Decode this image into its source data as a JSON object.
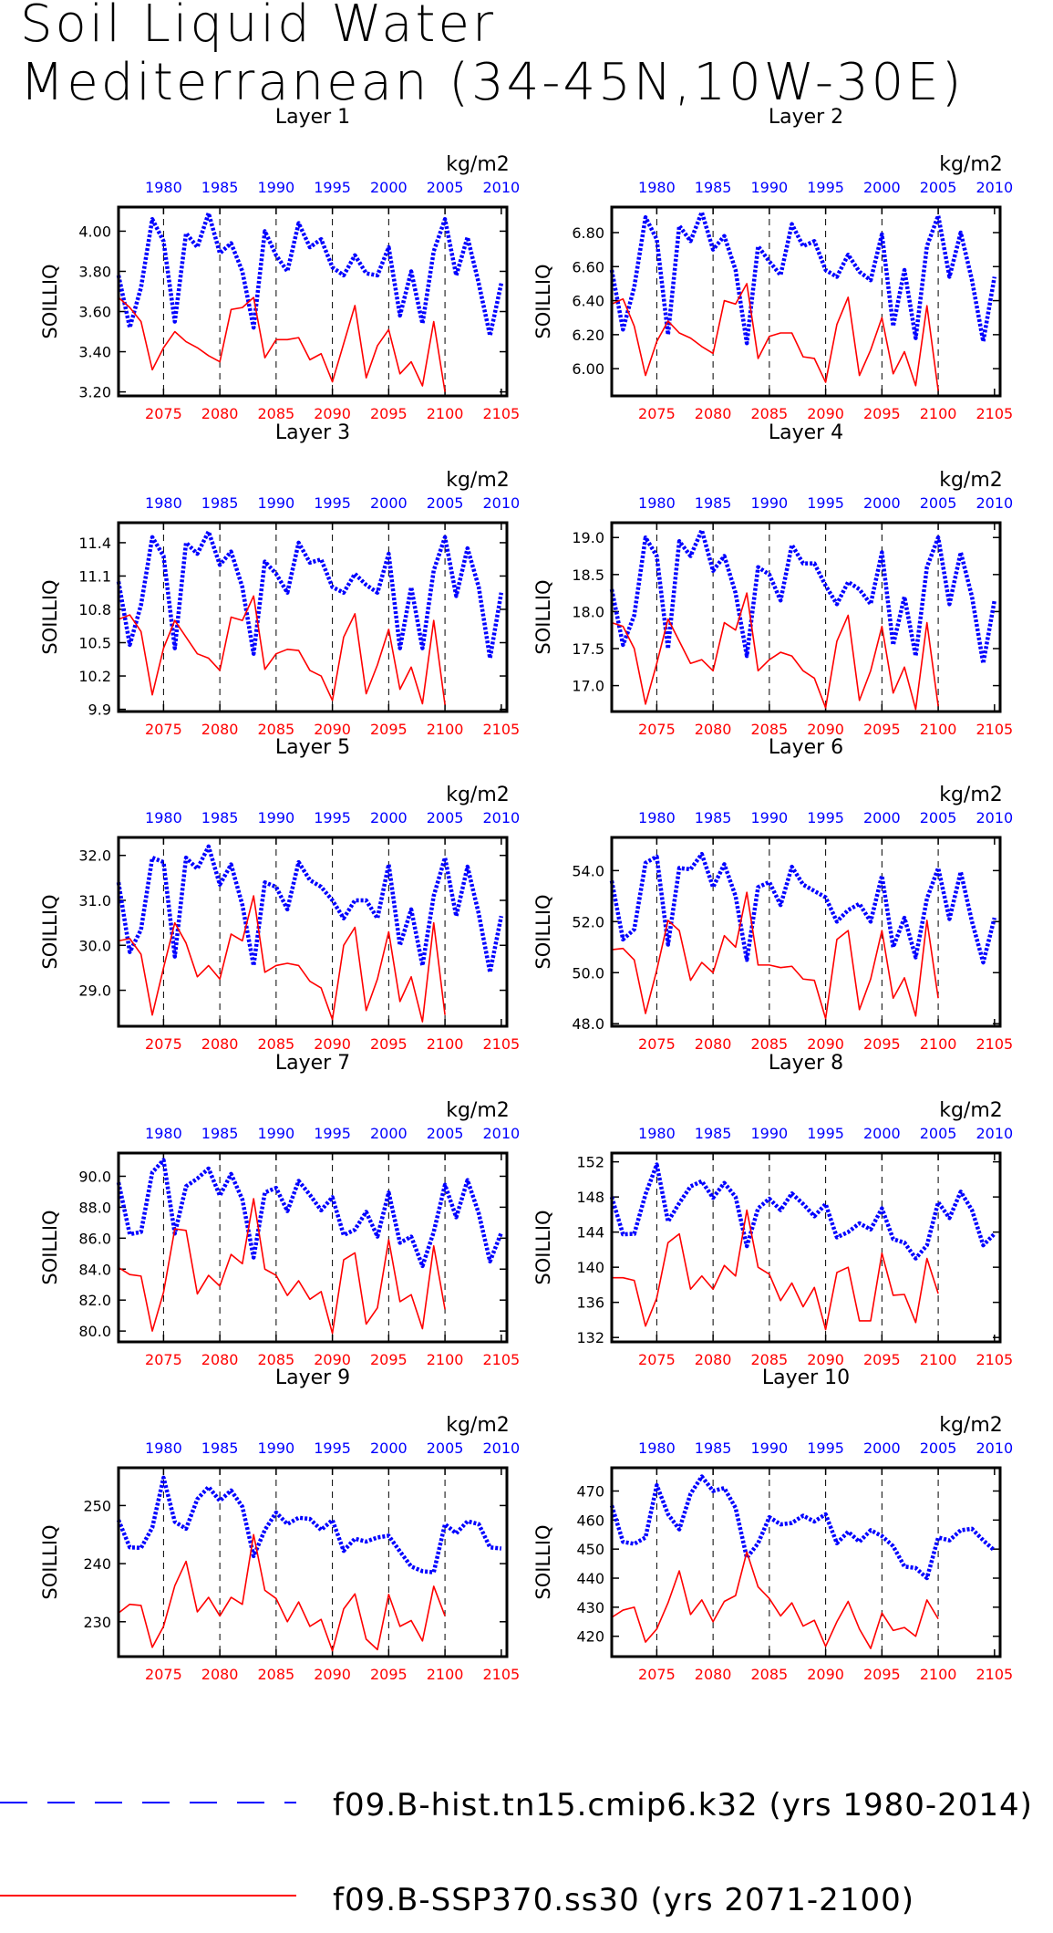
{
  "title": {
    "line1": "Soil Liquid Water",
    "line2": "Mediterranean (34-45N,10W-30E)"
  },
  "colors": {
    "hist": "#0000ff",
    "ssp": "#ff0000",
    "frame": "#000000"
  },
  "axes": {
    "ylabel": "SOILLIQ",
    "units": "kg/m2",
    "top_ticks": [
      "1980",
      "1985",
      "1990",
      "1995",
      "2000",
      "2005",
      "2010"
    ],
    "bottom_ticks": [
      "2075",
      "2080",
      "2085",
      "2090",
      "2095",
      "2100",
      "2105"
    ]
  },
  "legend": [
    {
      "label": "f09.B-hist.tn15.cmip6.k32 (yrs 1980-2014)",
      "color": "#0000ff",
      "style": "dashed"
    },
    {
      "label": "f09.B-SSP370.ss30 (yrs 2071-2100)",
      "color": "#ff0000",
      "style": "solid"
    }
  ],
  "chart_data": [
    {
      "type": "line",
      "title": "Layer 1",
      "ylabel": "SOILLIQ",
      "units": "kg/m2",
      "yticks": [
        "3.20",
        "3.40",
        "3.60",
        "3.80",
        "4.00"
      ],
      "ylim": [
        3.18,
        4.12
      ],
      "series": [
        {
          "name": "f09.B-hist.tn15.cmip6.k32 (yrs 1980-2014)",
          "x_start": 1980,
          "values": [
            3.78,
            3.52,
            3.72,
            4.06,
            3.95,
            3.55,
            3.99,
            3.92,
            4.09,
            3.89,
            3.94,
            3.8,
            3.52,
            4.0,
            3.88,
            3.8,
            4.04,
            3.92,
            3.96,
            3.82,
            3.78,
            3.88,
            3.79,
            3.78,
            3.92,
            3.58,
            3.8,
            3.54,
            3.9,
            4.06,
            3.78,
            3.97,
            3.74,
            3.48,
            3.74
          ]
        },
        {
          "name": "f09.B-SSP370.ss30 (yrs 2071-2100)",
          "x_start": 2071,
          "values": [
            3.67,
            3.62,
            3.55,
            3.31,
            3.42,
            3.5,
            3.45,
            3.42,
            3.38,
            3.35,
            3.61,
            3.62,
            3.67,
            3.37,
            3.46,
            3.46,
            3.47,
            3.36,
            3.39,
            3.25,
            3.44,
            3.63,
            3.27,
            3.43,
            3.51,
            3.29,
            3.35,
            3.23,
            3.55,
            3.2
          ]
        }
      ]
    },
    {
      "type": "line",
      "title": "Layer 2",
      "ylabel": "SOILLIQ",
      "units": "kg/m2",
      "yticks": [
        "6.00",
        "6.20",
        "6.40",
        "6.60",
        "6.80"
      ],
      "ylim": [
        5.84,
        6.95
      ],
      "series": [
        {
          "name": "f09.B-hist.tn15.cmip6.k32 (yrs 1980-2014)",
          "x_start": 1980,
          "values": [
            6.58,
            6.23,
            6.48,
            6.89,
            6.76,
            6.2,
            6.84,
            6.75,
            6.92,
            6.7,
            6.78,
            6.58,
            6.15,
            6.72,
            6.63,
            6.55,
            6.85,
            6.72,
            6.75,
            6.58,
            6.54,
            6.67,
            6.57,
            6.52,
            6.79,
            6.25,
            6.58,
            6.18,
            6.72,
            6.9,
            6.54,
            6.8,
            6.52,
            6.16,
            6.54
          ]
        },
        {
          "name": "f09.B-SSP370.ss30 (yrs 2071-2100)",
          "x_start": 2071,
          "values": [
            6.38,
            6.41,
            6.25,
            5.96,
            6.16,
            6.28,
            6.21,
            6.18,
            6.13,
            6.09,
            6.4,
            6.38,
            6.5,
            6.06,
            6.19,
            6.21,
            6.21,
            6.07,
            6.06,
            5.92,
            6.26,
            6.42,
            5.96,
            6.11,
            6.3,
            5.97,
            6.1,
            5.9,
            6.37,
            5.87
          ]
        }
      ]
    },
    {
      "type": "line",
      "title": "Layer 3",
      "ylabel": "SOILLIQ",
      "units": "kg/m2",
      "yticks": [
        "9.9",
        "10.2",
        "10.5",
        "10.8",
        "11.1",
        "11.4"
      ],
      "ylim": [
        9.88,
        11.58
      ],
      "series": [
        {
          "name": "f09.B-hist.tn15.cmip6.k32 (yrs 1980-2014)",
          "x_start": 1980,
          "values": [
            11.05,
            10.48,
            10.84,
            11.45,
            11.28,
            10.45,
            11.4,
            11.3,
            11.5,
            11.2,
            11.32,
            11.0,
            10.4,
            11.23,
            11.12,
            10.95,
            11.4,
            11.22,
            11.25,
            11.0,
            10.95,
            11.12,
            11.02,
            10.95,
            11.3,
            10.45,
            11.0,
            10.45,
            11.15,
            11.45,
            10.92,
            11.35,
            11.0,
            10.36,
            10.95
          ]
        },
        {
          "name": "f09.B-SSP370.ss30 (yrs 2071-2100)",
          "x_start": 2071,
          "values": [
            10.71,
            10.75,
            10.6,
            10.03,
            10.45,
            10.7,
            10.55,
            10.4,
            10.36,
            10.25,
            10.73,
            10.7,
            10.92,
            10.26,
            10.4,
            10.44,
            10.43,
            10.25,
            10.2,
            9.98,
            10.55,
            10.76,
            10.04,
            10.3,
            10.62,
            10.08,
            10.28,
            9.95,
            10.7,
            9.94
          ]
        }
      ]
    },
    {
      "type": "line",
      "title": "Layer 4",
      "ylabel": "SOILLIQ",
      "units": "kg/m2",
      "yticks": [
        "17.0",
        "17.5",
        "18.0",
        "18.5",
        "19.0"
      ],
      "ylim": [
        16.65,
        19.2
      ],
      "series": [
        {
          "name": "f09.B-hist.tn15.cmip6.k32 (yrs 1980-2014)",
          "x_start": 1980,
          "values": [
            18.3,
            17.55,
            17.95,
            19.0,
            18.75,
            17.5,
            18.95,
            18.75,
            19.1,
            18.55,
            18.75,
            18.25,
            17.4,
            18.6,
            18.5,
            18.15,
            18.9,
            18.65,
            18.65,
            18.35,
            18.1,
            18.4,
            18.3,
            18.1,
            18.8,
            17.55,
            18.2,
            17.4,
            18.6,
            19.0,
            18.1,
            18.8,
            18.2,
            17.3,
            18.15
          ]
        },
        {
          "name": "f09.B-SSP370.ss30 (yrs 2071-2100)",
          "x_start": 2071,
          "values": [
            17.85,
            17.8,
            17.5,
            16.75,
            17.3,
            17.9,
            17.6,
            17.3,
            17.35,
            17.2,
            17.85,
            17.75,
            18.25,
            17.2,
            17.35,
            17.45,
            17.4,
            17.2,
            17.1,
            16.7,
            17.6,
            17.95,
            16.8,
            17.2,
            17.8,
            16.9,
            17.25,
            16.68,
            17.85,
            16.72
          ]
        }
      ]
    },
    {
      "type": "line",
      "title": "Layer 5",
      "ylabel": "SOILLIQ",
      "units": "kg/m2",
      "yticks": [
        "29.0",
        "30.0",
        "31.0",
        "32.0"
      ],
      "ylim": [
        28.2,
        32.4
      ],
      "series": [
        {
          "name": "f09.B-hist.tn15.cmip6.k32 (yrs 1980-2014)",
          "x_start": 1980,
          "values": [
            31.4,
            29.85,
            30.35,
            31.95,
            31.85,
            29.75,
            31.95,
            31.7,
            32.2,
            31.35,
            31.8,
            30.9,
            29.55,
            31.4,
            31.3,
            30.8,
            31.85,
            31.45,
            31.3,
            31.0,
            30.6,
            31.0,
            31.0,
            30.6,
            31.8,
            30.0,
            30.8,
            29.55,
            31.1,
            31.95,
            30.65,
            31.75,
            30.7,
            29.4,
            30.65
          ]
        },
        {
          "name": "f09.B-SSP370.ss30 (yrs 2071-2100)",
          "x_start": 2071,
          "values": [
            30.1,
            30.15,
            29.8,
            28.45,
            29.5,
            30.5,
            30.05,
            29.3,
            29.55,
            29.25,
            30.25,
            30.1,
            31.1,
            29.4,
            29.55,
            29.6,
            29.55,
            29.2,
            29.05,
            28.35,
            30.0,
            30.4,
            28.55,
            29.25,
            30.3,
            28.75,
            29.3,
            28.3,
            30.5,
            28.45
          ]
        }
      ]
    },
    {
      "type": "line",
      "title": "Layer 6",
      "ylabel": "SOILLIQ",
      "units": "kg/m2",
      "yticks": [
        "48.0",
        "50.0",
        "52.0",
        "54.0"
      ],
      "ylim": [
        47.9,
        55.3
      ],
      "series": [
        {
          "name": "f09.B-hist.tn15.cmip6.k32 (yrs 1980-2014)",
          "x_start": 1980,
          "values": [
            53.6,
            51.3,
            51.7,
            54.3,
            54.55,
            51.1,
            54.1,
            54.05,
            54.65,
            53.35,
            54.25,
            53.0,
            50.5,
            53.35,
            53.55,
            52.65,
            54.15,
            53.45,
            53.2,
            52.95,
            52.0,
            52.45,
            52.7,
            52.0,
            53.8,
            51.0,
            52.15,
            50.6,
            52.9,
            54.1,
            52.1,
            53.95,
            52.0,
            50.4,
            52.15
          ]
        },
        {
          "name": "f09.B-SSP370.ss30 (yrs 2071-2100)",
          "x_start": 2071,
          "values": [
            50.9,
            50.95,
            50.5,
            48.4,
            50.1,
            52.05,
            51.65,
            49.7,
            50.4,
            50.0,
            51.45,
            51.0,
            53.15,
            50.3,
            50.3,
            50.2,
            50.25,
            49.75,
            49.7,
            48.2,
            51.3,
            51.65,
            48.55,
            49.75,
            51.65,
            49.0,
            49.8,
            48.3,
            52.05,
            49.0
          ]
        }
      ]
    },
    {
      "type": "line",
      "title": "Layer 7",
      "ylabel": "SOILLIQ",
      "units": "kg/m2",
      "yticks": [
        "80.0",
        "82.0",
        "84.0",
        "86.0",
        "88.0",
        "90.0"
      ],
      "ylim": [
        79.3,
        91.5
      ],
      "series": [
        {
          "name": "f09.B-hist.tn15.cmip6.k32 (yrs 1980-2014)",
          "x_start": 1980,
          "values": [
            89.6,
            86.25,
            86.4,
            90.25,
            91.05,
            86.3,
            89.35,
            89.85,
            90.5,
            88.75,
            90.15,
            88.5,
            84.75,
            88.95,
            89.25,
            87.75,
            89.7,
            88.8,
            87.8,
            88.65,
            86.2,
            86.55,
            87.7,
            86.1,
            88.95,
            85.7,
            86.1,
            84.2,
            86.4,
            89.45,
            87.35,
            89.75,
            87.6,
            84.5,
            86.35
          ]
        },
        {
          "name": "f09.B-SSP370.ss30 (yrs 2071-2100)",
          "x_start": 2071,
          "values": [
            84.1,
            83.65,
            83.55,
            80.0,
            82.5,
            86.6,
            86.5,
            82.4,
            83.6,
            82.9,
            84.95,
            84.35,
            88.55,
            84.0,
            83.6,
            82.3,
            83.25,
            82.05,
            82.55,
            79.85,
            84.6,
            85.05,
            80.45,
            81.5,
            85.9,
            81.9,
            82.35,
            80.15,
            85.5,
            81.4
          ]
        }
      ]
    },
    {
      "type": "line",
      "title": "Layer 8",
      "ylabel": "SOILLIQ",
      "units": "kg/m2",
      "yticks": [
        "132",
        "136",
        "140",
        "144",
        "148",
        "152"
      ],
      "ylim": [
        131.5,
        153
      ],
      "series": [
        {
          "name": "f09.B-hist.tn15.cmip6.k32 (yrs 1980-2014)",
          "x_start": 1980,
          "values": [
            148.0,
            143.75,
            143.8,
            148.3,
            151.7,
            145.2,
            147.3,
            149.2,
            149.8,
            147.9,
            149.6,
            148.0,
            142.4,
            146.7,
            147.8,
            146.5,
            148.4,
            147.2,
            145.8,
            147.2,
            143.4,
            144.0,
            145.0,
            144.3,
            146.7,
            143.2,
            142.8,
            141.0,
            142.5,
            147.4,
            145.6,
            148.6,
            146.5,
            142.5,
            143.8
          ]
        },
        {
          "name": "f09.B-SSP370.ss30 (yrs 2071-2100)",
          "x_start": 2071,
          "values": [
            138.8,
            138.8,
            138.5,
            133.3,
            136.5,
            142.8,
            143.8,
            137.5,
            139.0,
            137.5,
            140.2,
            139.0,
            146.5,
            140.0,
            139.2,
            136.2,
            138.2,
            135.5,
            137.7,
            132.9,
            139.4,
            140.0,
            133.9,
            133.9,
            141.6,
            136.8,
            136.9,
            133.7,
            141.0,
            137.0
          ]
        }
      ]
    },
    {
      "type": "line",
      "title": "Layer 9",
      "ylabel": "SOILLIQ",
      "units": "kg/m2",
      "yticks": [
        "230",
        "240",
        "250"
      ],
      "ylim": [
        224,
        256.5
      ],
      "series": [
        {
          "name": "f09.B-hist.tn15.cmip6.k32 (yrs 1980-2014)",
          "x_start": 1980,
          "values": [
            247.5,
            242.8,
            242.7,
            246.2,
            254.8,
            247.2,
            246.0,
            251.1,
            253.2,
            250.8,
            252.6,
            249.8,
            241.3,
            245.8,
            248.8,
            246.8,
            247.9,
            247.7,
            245.8,
            247.5,
            242.2,
            244.3,
            243.8,
            244.5,
            244.8,
            242.1,
            239.5,
            238.7,
            238.5,
            246.8,
            245.2,
            247.3,
            246.8,
            242.8,
            242.6
          ]
        },
        {
          "name": "f09.B-SSP370.ss30 (yrs 2071-2100)",
          "x_start": 2071,
          "values": [
            231.5,
            233.0,
            232.8,
            225.6,
            229.2,
            236.2,
            240.4,
            231.7,
            234.2,
            231.0,
            234.2,
            233.0,
            245.0,
            235.4,
            234.0,
            230.0,
            233.4,
            229.2,
            230.4,
            225.0,
            232.2,
            234.8,
            227.0,
            225.2,
            234.7,
            229.2,
            230.2,
            226.7,
            236.1,
            231.0
          ]
        }
      ]
    },
    {
      "type": "line",
      "title": "Layer 10",
      "ylabel": "SOILLIQ",
      "units": "kg/m2",
      "yticks": [
        "420",
        "430",
        "440",
        "450",
        "460",
        "470"
      ],
      "ylim": [
        413,
        478
      ],
      "series": [
        {
          "name": "f09.B-hist.tn15.cmip6.k32 (yrs 1980-2014)",
          "x_start": 1980,
          "values": [
            465.0,
            452.5,
            451.8,
            454.0,
            472.0,
            462.0,
            456.8,
            469.0,
            475.0,
            470.0,
            471.0,
            464.2,
            447.0,
            452.0,
            461.0,
            458.5,
            459.0,
            461.5,
            459.5,
            462.0,
            452.0,
            456.0,
            452.5,
            456.5,
            454.5,
            451.0,
            444.0,
            443.5,
            440.0,
            454.0,
            453.0,
            456.5,
            457.0,
            453.0,
            449.5
          ]
        },
        {
          "name": "f09.B-SSP370.ss30 (yrs 2071-2100)",
          "x_start": 2071,
          "values": [
            426.5,
            429.0,
            430.0,
            418.0,
            422.5,
            431.5,
            442.5,
            427.5,
            432.5,
            425.0,
            432.0,
            434.0,
            449.0,
            437.0,
            433.0,
            427.0,
            431.5,
            423.5,
            425.5,
            416.5,
            425.0,
            432.0,
            422.5,
            415.8,
            428.0,
            422.0,
            423.0,
            420.0,
            432.5,
            426.0
          ]
        }
      ]
    }
  ]
}
